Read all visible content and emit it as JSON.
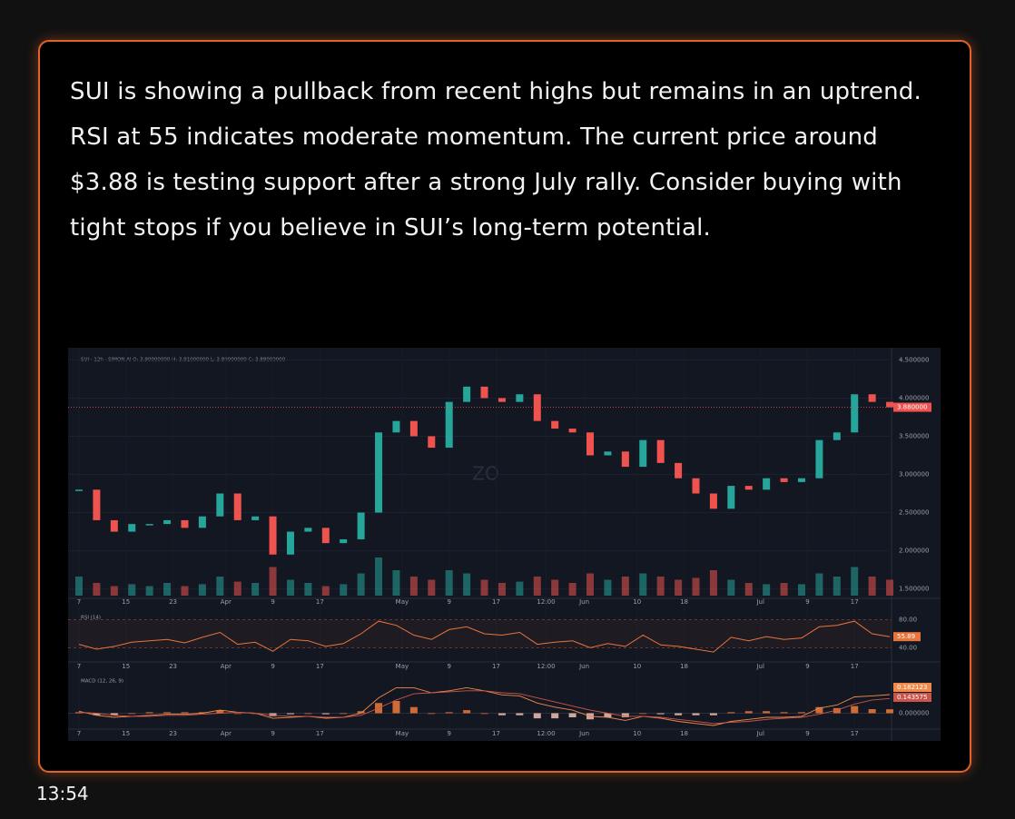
{
  "message": {
    "text": "SUI is showing a pullback from recent highs but remains in an uptrend. RSI at 55 indicates moderate momentum. The current price around $3.88 is testing support after a strong July rally. Consider buying with tight stops if you believe in SUI’s long-term potential.",
    "timestamp": "13:54"
  },
  "chart_data": {
    "type": "candlestick",
    "header": "SUI · 12h · SIMON.AI   O: 3.90000000  H: 3.91000000  L: 3.88000000  C: 3.88000000",
    "watermark": "ZO",
    "up_color": "#26a69a",
    "down_color": "#ef5350",
    "x": [
      0,
      3,
      6,
      9,
      12,
      15,
      18,
      21,
      24,
      27,
      30,
      33,
      36,
      39,
      42,
      45,
      48,
      51,
      54,
      57,
      60,
      63,
      66,
      69,
      72,
      75,
      78,
      81,
      84,
      87,
      90,
      93,
      96,
      99,
      102,
      105,
      108,
      111,
      114,
      117,
      120,
      123,
      126,
      129,
      132,
      135,
      138
    ],
    "close": [
      2.8,
      2.4,
      2.25,
      2.35,
      2.35,
      2.4,
      2.3,
      2.45,
      2.75,
      2.4,
      2.45,
      1.95,
      2.25,
      2.3,
      2.1,
      2.15,
      2.5,
      3.55,
      3.7,
      3.5,
      3.35,
      3.95,
      4.15,
      4.0,
      3.95,
      4.05,
      3.7,
      3.6,
      3.55,
      3.25,
      3.3,
      3.1,
      3.45,
      3.15,
      2.95,
      2.75,
      2.55,
      2.85,
      2.8,
      2.95,
      2.9,
      2.95,
      3.45,
      3.55,
      4.05,
      3.95,
      3.88
    ],
    "volume": [
      30,
      20,
      15,
      18,
      15,
      20,
      15,
      18,
      30,
      22,
      20,
      45,
      25,
      20,
      15,
      18,
      35,
      60,
      40,
      30,
      25,
      40,
      35,
      25,
      20,
      22,
      30,
      25,
      20,
      35,
      25,
      30,
      35,
      30,
      25,
      28,
      40,
      25,
      20,
      18,
      20,
      18,
      35,
      30,
      45,
      30,
      25
    ],
    "xlim": [
      0,
      140
    ],
    "xticks": [
      {
        "value": 0,
        "label": "7"
      },
      {
        "value": 8,
        "label": "15"
      },
      {
        "value": 16,
        "label": "23"
      },
      {
        "value": 25,
        "label": "Apr"
      },
      {
        "value": 33,
        "label": "9"
      },
      {
        "value": 41,
        "label": "17"
      },
      {
        "value": 55,
        "label": "May"
      },
      {
        "value": 63,
        "label": "9"
      },
      {
        "value": 71,
        "label": "17"
      },
      {
        "value": 79.5,
        "label": "12:00"
      },
      {
        "value": 86,
        "label": "Jun"
      },
      {
        "value": 95,
        "label": "10"
      },
      {
        "value": 103,
        "label": "18"
      },
      {
        "value": 116,
        "label": "Jul"
      },
      {
        "value": 124,
        "label": "9"
      },
      {
        "value": 132,
        "label": "17"
      }
    ],
    "ylim": [
      1.4,
      4.6
    ],
    "yticks": [
      {
        "value": 4.5,
        "label": "4.500000"
      },
      {
        "value": 4.0,
        "label": "4.000000"
      },
      {
        "value": 3.5,
        "label": "3.500000"
      },
      {
        "value": 3.0,
        "label": "3.000000"
      },
      {
        "value": 2.5,
        "label": "2.500000"
      },
      {
        "value": 2.0,
        "label": "2.000000"
      },
      {
        "value": 1.5,
        "label": "1.500000"
      }
    ],
    "current_price": {
      "value": 3.88,
      "label": "3.880000"
    },
    "rsi": {
      "title": "RSI (14)",
      "color": "#e8743b",
      "values": [
        45,
        38,
        42,
        48,
        50,
        52,
        47,
        55,
        62,
        45,
        48,
        35,
        52,
        50,
        42,
        46,
        60,
        78,
        72,
        58,
        52,
        66,
        70,
        60,
        58,
        62,
        45,
        48,
        50,
        40,
        46,
        42,
        58,
        44,
        42,
        38,
        34,
        55,
        50,
        56,
        52,
        54,
        70,
        72,
        78,
        60,
        55.89
      ],
      "ylim": [
        25,
        95
      ],
      "yticks": [
        {
          "value": 80,
          "label": "80.00"
        },
        {
          "value": 40,
          "label": "40.00"
        }
      ]
    },
    "macd": {
      "title": "MACD (12, 26, 9)",
      "color": "#f08a4b",
      "signal_color": "#c9554a",
      "hist_color": "#f07a3a",
      "values": [
        0.02,
        -0.02,
        -0.04,
        -0.03,
        -0.02,
        -0.01,
        -0.01,
        0.0,
        0.03,
        0.01,
        0.0,
        -0.05,
        -0.04,
        -0.03,
        -0.05,
        -0.04,
        0.0,
        0.15,
        0.25,
        0.25,
        0.2,
        0.22,
        0.25,
        0.22,
        0.18,
        0.17,
        0.1,
        0.06,
        0.03,
        -0.03,
        -0.04,
        -0.07,
        -0.03,
        -0.05,
        -0.08,
        -0.1,
        -0.12,
        -0.08,
        -0.06,
        -0.04,
        -0.04,
        -0.03,
        0.05,
        0.08,
        0.16,
        0.17,
        0.182123
      ],
      "signal": [
        0.01,
        0.0,
        -0.02,
        -0.03,
        -0.03,
        -0.02,
        -0.02,
        -0.01,
        0.0,
        0.01,
        0.0,
        -0.02,
        -0.03,
        -0.03,
        -0.04,
        -0.04,
        -0.02,
        0.05,
        0.13,
        0.19,
        0.2,
        0.21,
        0.22,
        0.22,
        0.2,
        0.19,
        0.15,
        0.11,
        0.07,
        0.03,
        0.0,
        -0.03,
        -0.03,
        -0.04,
        -0.06,
        -0.08,
        -0.1,
        -0.09,
        -0.08,
        -0.06,
        -0.05,
        -0.04,
        -0.01,
        0.03,
        0.09,
        0.13,
        0.143575
      ],
      "ylim": [
        -0.12,
        0.36
      ],
      "yticks": [
        {
          "value": 0,
          "label": "0.000000"
        }
      ]
    }
  }
}
